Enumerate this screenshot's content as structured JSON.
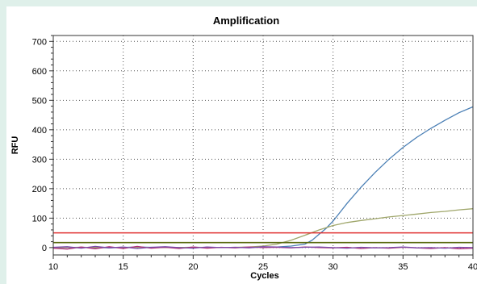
{
  "chart_data": {
    "type": "line",
    "title": "Amplification",
    "xlabel": "Cycles",
    "ylabel": "RFU",
    "xlim": [
      10,
      40
    ],
    "ylim": [
      -25,
      720
    ],
    "xticks": [
      10,
      15,
      20,
      25,
      30,
      35,
      40
    ],
    "yticks": [
      0,
      100,
      200,
      300,
      400,
      500,
      600,
      700
    ],
    "grid": true,
    "legend": "none",
    "series": [
      {
        "color": "#4a7fb5",
        "x": [
          10,
          12,
          14,
          16,
          18,
          20,
          22,
          24,
          26,
          27,
          28,
          28.5,
          29,
          29.5,
          30,
          30.5,
          31,
          32,
          33,
          34,
          35,
          36,
          37,
          38,
          39,
          40
        ],
        "y": [
          0,
          1,
          -1,
          2,
          0,
          1,
          0,
          1,
          2,
          5,
          12,
          25,
          45,
          65,
          90,
          120,
          150,
          205,
          255,
          300,
          340,
          375,
          405,
          432,
          458,
          478
        ]
      },
      {
        "color": "#9fa66a",
        "x": [
          10,
          12,
          14,
          16,
          18,
          20,
          22,
          24,
          25,
          26,
          27,
          28,
          29,
          30,
          31,
          32,
          33,
          34,
          35,
          36,
          37,
          38,
          39,
          40
        ],
        "y": [
          0,
          1,
          0,
          1,
          0,
          1,
          0,
          2,
          5,
          12,
          25,
          42,
          60,
          75,
          85,
          92,
          98,
          104,
          109,
          114,
          119,
          123,
          128,
          132
        ]
      },
      {
        "color": "#b0307a",
        "x": [
          10,
          11,
          12,
          13,
          14,
          15,
          16,
          17,
          18,
          19,
          20,
          21,
          22,
          23,
          24,
          25,
          26,
          27,
          28,
          29,
          30,
          31,
          32,
          33,
          34,
          35,
          36,
          37,
          38,
          39,
          40
        ],
        "y": [
          -2,
          -5,
          2,
          -4,
          3,
          -3,
          4,
          -2,
          1,
          -3,
          2,
          -2,
          1,
          -1,
          2,
          0,
          1,
          -1,
          2,
          0,
          -1,
          1,
          -3,
          0,
          -2,
          1,
          -1,
          -3,
          0,
          -4,
          -2
        ]
      },
      {
        "color": "#7a4aa8",
        "x": [
          10,
          11,
          12,
          13,
          14,
          15,
          16,
          17,
          18,
          19,
          20,
          21,
          22,
          23,
          24,
          25,
          26,
          27,
          28,
          29,
          30,
          31,
          32,
          33,
          34,
          35,
          36,
          37,
          38,
          39,
          40
        ],
        "y": [
          1,
          3,
          -2,
          4,
          -1,
          2,
          -3,
          1,
          3,
          0,
          -2,
          2,
          0,
          1,
          -1,
          3,
          2,
          0,
          1,
          2,
          0,
          -2,
          1,
          -1,
          0,
          2,
          -1,
          0,
          -2,
          1,
          0
        ]
      }
    ],
    "threshold_lines": [
      {
        "color": "#e03030",
        "y": 50
      },
      {
        "color": "#5a6a10",
        "y": 17
      }
    ]
  }
}
